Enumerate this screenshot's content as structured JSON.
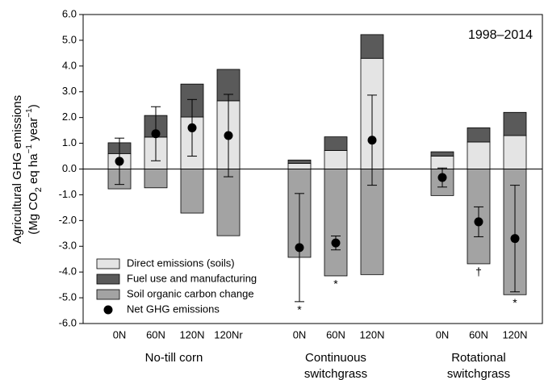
{
  "chart_data": {
    "type": "bar",
    "annotation": "1998–2014",
    "y_label": "Agricultural GHG emissions",
    "y_label_units": [
      "(Mg CO",
      "2",
      " eq ha",
      "−1",
      " year",
      "−1",
      ")"
    ],
    "groups": [
      {
        "name": [
          "No-till corn"
        ],
        "categories": [
          "0N",
          "60N",
          "120N",
          "120Nr"
        ]
      },
      {
        "name": [
          "Continuous",
          "switchgrass"
        ],
        "categories": [
          "0N",
          "60N",
          "120N"
        ]
      },
      {
        "name": [
          "Rotational",
          "switchgrass"
        ],
        "categories": [
          "0N",
          "60N",
          "120N"
        ]
      }
    ],
    "series": [
      {
        "name": "Direct emissions (soils)",
        "color": "#e4e4e4",
        "values": [
          0.6,
          1.24,
          2.02,
          2.65,
          0.22,
          0.72,
          4.3,
          0.5,
          1.05,
          1.3
        ]
      },
      {
        "name": "Fuel use and manufacturing",
        "color": "#5a5a5a",
        "values": [
          0.42,
          0.84,
          1.28,
          1.22,
          0.13,
          0.53,
          0.92,
          0.17,
          0.55,
          0.9
        ]
      },
      {
        "name": "Soil organic carbon change",
        "color": "#a3a3a3",
        "values": [
          -0.77,
          -0.73,
          -1.71,
          -2.59,
          -3.43,
          -4.15,
          -4.1,
          -1.03,
          -3.68,
          -4.88
        ]
      },
      {
        "name": "Net GHG emissions",
        "type": "scatter",
        "color": "#000000",
        "values": [
          0.3,
          1.37,
          1.6,
          1.3,
          -3.05,
          -2.87,
          1.12,
          -0.33,
          -2.05,
          -2.7
        ],
        "errors": [
          0.9,
          1.05,
          1.1,
          1.6,
          2.1,
          0.27,
          1.75,
          0.37,
          0.58,
          2.07
        ]
      }
    ],
    "significance": [
      null,
      null,
      null,
      null,
      "*",
      "*",
      null,
      null,
      "†",
      "*"
    ],
    "ylim": [
      -6,
      6
    ],
    "yticks": [
      {
        "value": -6,
        "label": "-6.0"
      },
      {
        "value": -5,
        "label": "-5.0"
      },
      {
        "value": -4,
        "label": "-4.0"
      },
      {
        "value": -3,
        "label": "-3.0"
      },
      {
        "value": -2,
        "label": "-2.0"
      },
      {
        "value": -1,
        "label": "-1.0"
      },
      {
        "value": 0,
        "label": "0.0"
      },
      {
        "value": 1,
        "label": "1.0"
      },
      {
        "value": 2,
        "label": "2.0"
      },
      {
        "value": 3,
        "label": "3.0"
      },
      {
        "value": 4,
        "label": "4.0"
      },
      {
        "value": 5,
        "label": "5.0"
      },
      {
        "value": 6,
        "label": "6.0"
      }
    ],
    "zero_line": true,
    "legend": "lower left"
  }
}
